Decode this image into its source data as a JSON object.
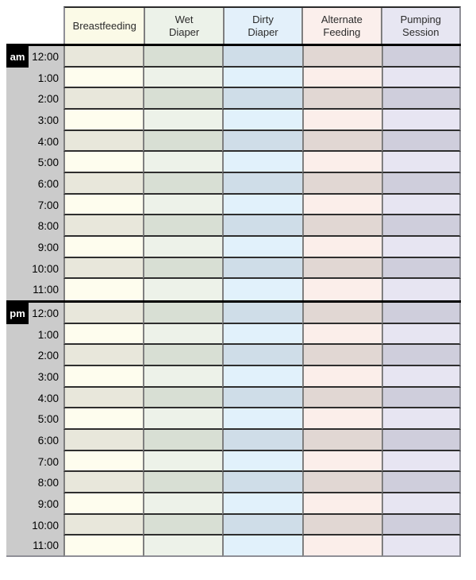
{
  "chart": {
    "columns": [
      {
        "key": "breastfeeding",
        "label": "Breastfeeding",
        "header_bg": "#fbfae7",
        "row_light": "#fefdee",
        "row_dark": "#e8e7db"
      },
      {
        "key": "wet-diaper",
        "label": "Wet\nDiaper",
        "header_bg": "#ecf2e9",
        "row_light": "#edf2e9",
        "row_dark": "#d8dfd4"
      },
      {
        "key": "dirty-diaper",
        "label": "Dirty\nDiaper",
        "header_bg": "#e3f0fa",
        "row_light": "#e1f1fb",
        "row_dark": "#cfdde8"
      },
      {
        "key": "alternate-feeding",
        "label": "Alternate\nFeeding",
        "header_bg": "#fbefec",
        "row_light": "#fbeeea",
        "row_dark": "#e1d7d3"
      },
      {
        "key": "pumping-session",
        "label": "Pumping\nSession",
        "header_bg": "#e7e6f2",
        "row_light": "#e7e5f2",
        "row_dark": "#cfcedc"
      }
    ],
    "sections": [
      {
        "period": "am",
        "times": [
          "12:00",
          "1:00",
          "2:00",
          "3:00",
          "4:00",
          "5:00",
          "6:00",
          "7:00",
          "8:00",
          "9:00",
          "10:00",
          "11:00"
        ]
      },
      {
        "period": "pm",
        "times": [
          "12:00",
          "1:00",
          "2:00",
          "3:00",
          "4:00",
          "5:00",
          "6:00",
          "7:00",
          "8:00",
          "9:00",
          "10:00",
          "11:00"
        ]
      }
    ],
    "colors": {
      "time_column_bg": "#cbcbcb",
      "period_badge_bg": "#000000",
      "period_badge_text": "#ffffff",
      "column_grid_line": "#7f7f7f",
      "row_grid_line": "#2e2e2e",
      "outer_border": "#8f8f97",
      "section_divider": "#000000",
      "header_text": "#2b2b2b"
    }
  }
}
